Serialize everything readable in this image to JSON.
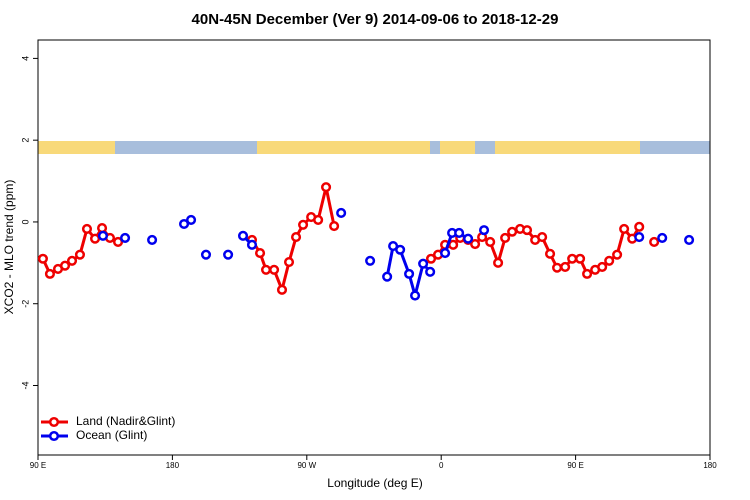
{
  "chart_data": {
    "type": "line",
    "title": "40N-45N December (Ver 9)   2014-09-06 to 2018-12-29",
    "x_label": "Longitude (deg E)",
    "y_label": "XCO2 - MLO trend (ppm)",
    "xlim": [
      90,
      540
    ],
    "ylim": [
      -5.7,
      4.45
    ],
    "xticks": [
      {
        "value": 90,
        "label": "90 E"
      },
      {
        "value": 180,
        "label": "180"
      },
      {
        "value": 270,
        "label": "90 W"
      },
      {
        "value": 360,
        "label": "0"
      },
      {
        "value": 450,
        "label": "90 E"
      },
      {
        "value": 540,
        "label": "180"
      }
    ],
    "yticks": [
      4,
      2,
      0,
      -2,
      -4
    ],
    "legend": "bottom-left",
    "series": [
      {
        "name": "Land (Nadir&Glint)",
        "color": "#ee0000",
        "x": [
          93.3,
          98.0,
          103.4,
          108.1,
          112.8,
          118.1,
          122.8,
          128.2,
          132.9,
          138.2,
          null,
          143.6,
          null,
          233.3,
          238.7,
          242.7,
          248.1,
          253.4,
          258.1,
          262.8,
          267.5,
          272.9,
          277.6,
          282.9,
          288.3,
          null,
          353.2,
          357.9,
          362.6,
          368.0,
          372.7,
          378.0,
          382.7,
          387.4,
          392.8,
          398.1,
          402.8,
          407.5,
          412.8,
          417.5,
          422.9,
          427.6,
          432.9,
          437.6,
          443.0,
          447.7,
          453.0,
          457.7,
          463.1,
          467.8,
          472.5,
          477.8,
          482.5,
          487.9,
          492.6,
          null,
          502.6
        ],
        "values": [
          -0.9,
          -1.27,
          -1.15,
          -1.07,
          -0.95,
          -0.8,
          -0.17,
          -0.41,
          -0.15,
          -0.39,
          null,
          -0.49,
          null,
          -0.44,
          -0.76,
          -1.17,
          -1.17,
          -1.66,
          -0.98,
          -0.37,
          -0.07,
          0.12,
          0.05,
          0.85,
          -0.1,
          null,
          -0.9,
          -0.8,
          -0.56,
          -0.56,
          -0.39,
          -0.44,
          -0.54,
          -0.37,
          -0.49,
          -1.0,
          -0.39,
          -0.24,
          -0.17,
          -0.2,
          -0.44,
          -0.37,
          -0.78,
          -1.12,
          -1.1,
          -0.9,
          -0.9,
          -1.27,
          -1.17,
          -1.1,
          -0.95,
          -0.8,
          -0.17,
          -0.41,
          -0.12,
          null,
          -0.49
        ]
      },
      {
        "name": "Ocean (Glint)",
        "color": "#0000ee",
        "x": [
          133.5,
          null,
          148.3,
          null,
          166.4,
          null,
          187.8,
          192.5,
          null,
          202.5,
          null,
          217.3,
          null,
          227.3,
          233.3,
          null,
          293.0,
          null,
          312.4,
          null,
          323.8,
          327.8,
          332.5,
          338.5,
          342.5,
          347.9,
          352.6,
          null,
          362.6,
          367.3,
          372.0,
          378.0,
          null,
          388.7,
          null,
          492.6,
          null,
          508.0,
          null,
          526.0
        ],
        "values": [
          -0.34,
          null,
          -0.39,
          null,
          -0.44,
          null,
          -0.05,
          0.05,
          null,
          -0.8,
          null,
          -0.8,
          null,
          -0.34,
          -0.56,
          null,
          0.22,
          null,
          -0.95,
          null,
          -1.34,
          -0.59,
          -0.68,
          -1.27,
          -1.8,
          -1.02,
          -1.22,
          null,
          -0.76,
          -0.27,
          -0.27,
          -0.41,
          null,
          -0.2,
          null,
          -0.37,
          null,
          -0.39,
          null,
          -0.44
        ]
      }
    ]
  }
}
